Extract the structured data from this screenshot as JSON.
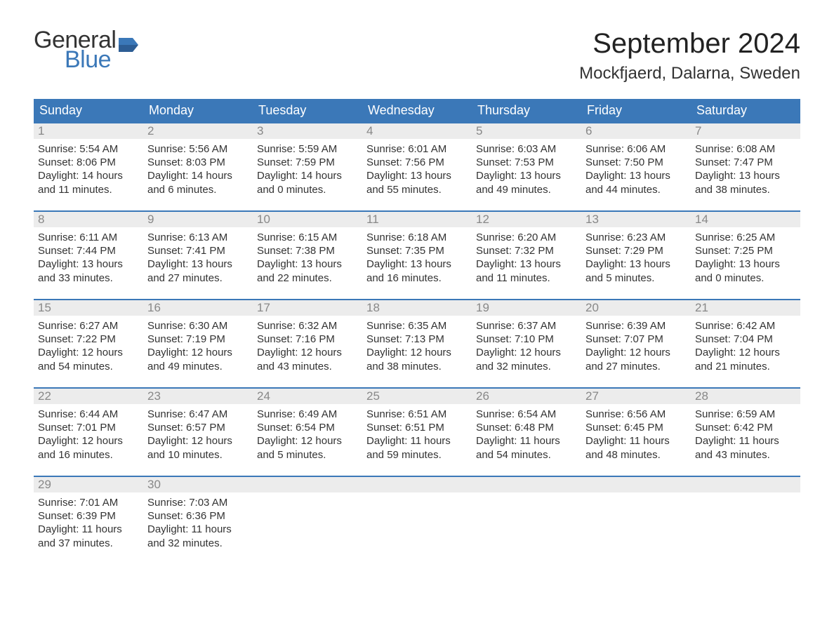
{
  "logo": {
    "text1": "General",
    "text2": "Blue",
    "flag_color": "#3b78b8",
    "text1_color": "#333333"
  },
  "title": "September 2024",
  "location": "Mockfjaerd, Dalarna, Sweden",
  "styling": {
    "header_bg": "#3b78b8",
    "header_text": "#ffffff",
    "week_border": "#3b78b8",
    "daynum_bg": "#ececec",
    "daynum_text": "#888888",
    "body_text": "#333333",
    "page_bg": "#ffffff",
    "title_fontsize": 40,
    "location_fontsize": 24,
    "weekday_fontsize": 18,
    "body_fontsize": 15
  },
  "weekdays": [
    "Sunday",
    "Monday",
    "Tuesday",
    "Wednesday",
    "Thursday",
    "Friday",
    "Saturday"
  ],
  "weeks": [
    [
      {
        "day": "1",
        "sunrise": "Sunrise: 5:54 AM",
        "sunset": "Sunset: 8:06 PM",
        "dl1": "Daylight: 14 hours",
        "dl2": "and 11 minutes."
      },
      {
        "day": "2",
        "sunrise": "Sunrise: 5:56 AM",
        "sunset": "Sunset: 8:03 PM",
        "dl1": "Daylight: 14 hours",
        "dl2": "and 6 minutes."
      },
      {
        "day": "3",
        "sunrise": "Sunrise: 5:59 AM",
        "sunset": "Sunset: 7:59 PM",
        "dl1": "Daylight: 14 hours",
        "dl2": "and 0 minutes."
      },
      {
        "day": "4",
        "sunrise": "Sunrise: 6:01 AM",
        "sunset": "Sunset: 7:56 PM",
        "dl1": "Daylight: 13 hours",
        "dl2": "and 55 minutes."
      },
      {
        "day": "5",
        "sunrise": "Sunrise: 6:03 AM",
        "sunset": "Sunset: 7:53 PM",
        "dl1": "Daylight: 13 hours",
        "dl2": "and 49 minutes."
      },
      {
        "day": "6",
        "sunrise": "Sunrise: 6:06 AM",
        "sunset": "Sunset: 7:50 PM",
        "dl1": "Daylight: 13 hours",
        "dl2": "and 44 minutes."
      },
      {
        "day": "7",
        "sunrise": "Sunrise: 6:08 AM",
        "sunset": "Sunset: 7:47 PM",
        "dl1": "Daylight: 13 hours",
        "dl2": "and 38 minutes."
      }
    ],
    [
      {
        "day": "8",
        "sunrise": "Sunrise: 6:11 AM",
        "sunset": "Sunset: 7:44 PM",
        "dl1": "Daylight: 13 hours",
        "dl2": "and 33 minutes."
      },
      {
        "day": "9",
        "sunrise": "Sunrise: 6:13 AM",
        "sunset": "Sunset: 7:41 PM",
        "dl1": "Daylight: 13 hours",
        "dl2": "and 27 minutes."
      },
      {
        "day": "10",
        "sunrise": "Sunrise: 6:15 AM",
        "sunset": "Sunset: 7:38 PM",
        "dl1": "Daylight: 13 hours",
        "dl2": "and 22 minutes."
      },
      {
        "day": "11",
        "sunrise": "Sunrise: 6:18 AM",
        "sunset": "Sunset: 7:35 PM",
        "dl1": "Daylight: 13 hours",
        "dl2": "and 16 minutes."
      },
      {
        "day": "12",
        "sunrise": "Sunrise: 6:20 AM",
        "sunset": "Sunset: 7:32 PM",
        "dl1": "Daylight: 13 hours",
        "dl2": "and 11 minutes."
      },
      {
        "day": "13",
        "sunrise": "Sunrise: 6:23 AM",
        "sunset": "Sunset: 7:29 PM",
        "dl1": "Daylight: 13 hours",
        "dl2": "and 5 minutes."
      },
      {
        "day": "14",
        "sunrise": "Sunrise: 6:25 AM",
        "sunset": "Sunset: 7:25 PM",
        "dl1": "Daylight: 13 hours",
        "dl2": "and 0 minutes."
      }
    ],
    [
      {
        "day": "15",
        "sunrise": "Sunrise: 6:27 AM",
        "sunset": "Sunset: 7:22 PM",
        "dl1": "Daylight: 12 hours",
        "dl2": "and 54 minutes."
      },
      {
        "day": "16",
        "sunrise": "Sunrise: 6:30 AM",
        "sunset": "Sunset: 7:19 PM",
        "dl1": "Daylight: 12 hours",
        "dl2": "and 49 minutes."
      },
      {
        "day": "17",
        "sunrise": "Sunrise: 6:32 AM",
        "sunset": "Sunset: 7:16 PM",
        "dl1": "Daylight: 12 hours",
        "dl2": "and 43 minutes."
      },
      {
        "day": "18",
        "sunrise": "Sunrise: 6:35 AM",
        "sunset": "Sunset: 7:13 PM",
        "dl1": "Daylight: 12 hours",
        "dl2": "and 38 minutes."
      },
      {
        "day": "19",
        "sunrise": "Sunrise: 6:37 AM",
        "sunset": "Sunset: 7:10 PM",
        "dl1": "Daylight: 12 hours",
        "dl2": "and 32 minutes."
      },
      {
        "day": "20",
        "sunrise": "Sunrise: 6:39 AM",
        "sunset": "Sunset: 7:07 PM",
        "dl1": "Daylight: 12 hours",
        "dl2": "and 27 minutes."
      },
      {
        "day": "21",
        "sunrise": "Sunrise: 6:42 AM",
        "sunset": "Sunset: 7:04 PM",
        "dl1": "Daylight: 12 hours",
        "dl2": "and 21 minutes."
      }
    ],
    [
      {
        "day": "22",
        "sunrise": "Sunrise: 6:44 AM",
        "sunset": "Sunset: 7:01 PM",
        "dl1": "Daylight: 12 hours",
        "dl2": "and 16 minutes."
      },
      {
        "day": "23",
        "sunrise": "Sunrise: 6:47 AM",
        "sunset": "Sunset: 6:57 PM",
        "dl1": "Daylight: 12 hours",
        "dl2": "and 10 minutes."
      },
      {
        "day": "24",
        "sunrise": "Sunrise: 6:49 AM",
        "sunset": "Sunset: 6:54 PM",
        "dl1": "Daylight: 12 hours",
        "dl2": "and 5 minutes."
      },
      {
        "day": "25",
        "sunrise": "Sunrise: 6:51 AM",
        "sunset": "Sunset: 6:51 PM",
        "dl1": "Daylight: 11 hours",
        "dl2": "and 59 minutes."
      },
      {
        "day": "26",
        "sunrise": "Sunrise: 6:54 AM",
        "sunset": "Sunset: 6:48 PM",
        "dl1": "Daylight: 11 hours",
        "dl2": "and 54 minutes."
      },
      {
        "day": "27",
        "sunrise": "Sunrise: 6:56 AM",
        "sunset": "Sunset: 6:45 PM",
        "dl1": "Daylight: 11 hours",
        "dl2": "and 48 minutes."
      },
      {
        "day": "28",
        "sunrise": "Sunrise: 6:59 AM",
        "sunset": "Sunset: 6:42 PM",
        "dl1": "Daylight: 11 hours",
        "dl2": "and 43 minutes."
      }
    ],
    [
      {
        "day": "29",
        "sunrise": "Sunrise: 7:01 AM",
        "sunset": "Sunset: 6:39 PM",
        "dl1": "Daylight: 11 hours",
        "dl2": "and 37 minutes."
      },
      {
        "day": "30",
        "sunrise": "Sunrise: 7:03 AM",
        "sunset": "Sunset: 6:36 PM",
        "dl1": "Daylight: 11 hours",
        "dl2": "and 32 minutes."
      },
      {
        "empty": true
      },
      {
        "empty": true
      },
      {
        "empty": true
      },
      {
        "empty": true
      },
      {
        "empty": true
      }
    ]
  ]
}
